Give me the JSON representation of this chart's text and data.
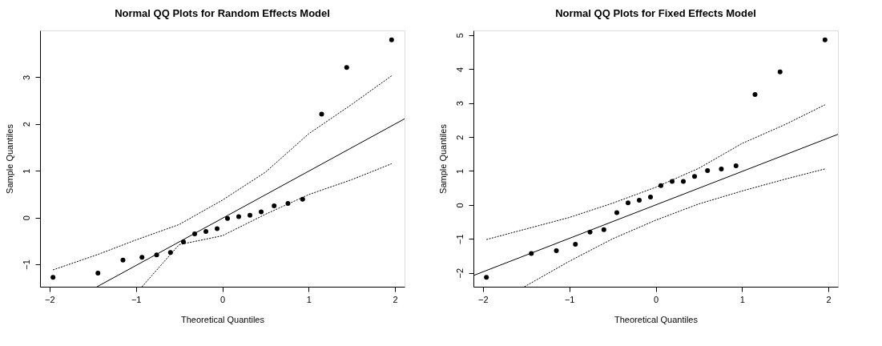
{
  "chart_data": [
    {
      "type": "scatter",
      "title": "Normal QQ Plots for Random Effects Model",
      "xlabel": "Theoretical Quantiles",
      "ylabel": "Sample Quantiles",
      "xlim": [
        -2.11,
        2.11
      ],
      "ylim": [
        -1.48,
        4.0
      ],
      "xticks": [
        -2,
        -1,
        0,
        1,
        2
      ],
      "yticks": [
        -1,
        0,
        1,
        2,
        3
      ],
      "grid": false,
      "series": [
        {
          "color": "#000000",
          "marker": "circle",
          "x": [
            -1.96,
            -1.44,
            -1.15,
            -0.93,
            -0.76,
            -0.6,
            -0.45,
            -0.32,
            -0.19,
            -0.06,
            0.06,
            0.19,
            0.32,
            0.45,
            0.6,
            0.76,
            0.93,
            1.15,
            1.44,
            1.96
          ],
          "values": [
            -1.28,
            -1.19,
            -0.91,
            -0.85,
            -0.8,
            -0.75,
            -0.52,
            -0.35,
            -0.3,
            -0.24,
            -0.02,
            0.02,
            0.05,
            0.12,
            0.25,
            0.3,
            0.39,
            2.21,
            3.21,
            3.8
          ]
        },
        {
          "type": "line",
          "color": "#000000",
          "line_style": "solid",
          "x": [
            -1.45,
            2.11
          ],
          "values": [
            -1.48,
            2.11
          ]
        },
        {
          "type": "line",
          "color": "#000000",
          "line_style": "dotted",
          "x": [
            -1.96,
            -1.44,
            -1.0,
            -0.5,
            0.0,
            0.5,
            1.0,
            1.5,
            1.96
          ],
          "values": [
            -1.12,
            -0.79,
            -0.48,
            -0.15,
            0.37,
            0.97,
            1.79,
            2.42,
            3.03
          ]
        },
        {
          "type": "line",
          "color": "#000000",
          "line_style": "dotted",
          "x": [
            -0.93,
            -0.5,
            0.0,
            0.5,
            1.0,
            1.5,
            1.96
          ],
          "values": [
            -1.48,
            -0.58,
            -0.39,
            0.07,
            0.49,
            0.81,
            1.15
          ]
        }
      ]
    },
    {
      "type": "scatter",
      "title": "Normal QQ Plots for Fixed Effects Model",
      "xlabel": "Theoretical Quantiles",
      "ylabel": "Sample Quantiles",
      "xlim": [
        -2.11,
        2.11
      ],
      "ylim": [
        -2.41,
        5.14
      ],
      "xticks": [
        -2,
        -1,
        0,
        1,
        2
      ],
      "yticks": [
        -2,
        -1,
        0,
        1,
        2,
        3,
        4,
        5
      ],
      "grid": false,
      "series": [
        {
          "color": "#000000",
          "marker": "circle",
          "x": [
            -1.96,
            -1.44,
            -1.15,
            -0.93,
            -0.76,
            -0.6,
            -0.45,
            -0.32,
            -0.19,
            -0.06,
            0.06,
            0.19,
            0.32,
            0.45,
            0.6,
            0.76,
            0.93,
            1.15,
            1.44,
            1.96
          ],
          "values": [
            -2.13,
            -1.43,
            -1.35,
            -1.16,
            -0.8,
            -0.73,
            -0.23,
            0.06,
            0.14,
            0.23,
            0.57,
            0.69,
            0.69,
            0.84,
            1.01,
            1.06,
            1.15,
            3.25,
            3.92,
            4.86
          ]
        },
        {
          "type": "line",
          "color": "#000000",
          "line_style": "solid",
          "x": [
            -2.11,
            2.11
          ],
          "values": [
            -2.08,
            2.08
          ]
        },
        {
          "type": "line",
          "color": "#000000",
          "line_style": "dotted",
          "x": [
            -1.96,
            -1.0,
            -0.5,
            0.0,
            0.5,
            1.0,
            1.5,
            1.96
          ],
          "values": [
            -1.02,
            -0.37,
            0.05,
            0.52,
            1.08,
            1.81,
            2.37,
            2.95
          ]
        },
        {
          "type": "line",
          "color": "#000000",
          "line_style": "dotted",
          "x": [
            -1.52,
            -1.0,
            -0.5,
            0.0,
            0.5,
            1.0,
            1.5,
            1.96
          ],
          "values": [
            -2.41,
            -1.66,
            -1.0,
            -0.45,
            0.03,
            0.41,
            0.76,
            1.06
          ]
        }
      ]
    }
  ]
}
